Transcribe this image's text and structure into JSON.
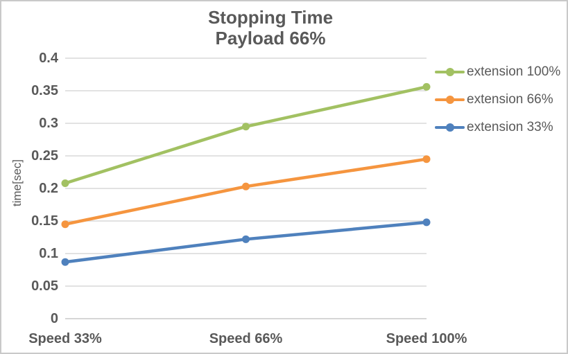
{
  "chart_data": {
    "type": "line",
    "title": "Stopping Time",
    "subtitle": "Payload 66%",
    "categories": [
      "Speed 33%",
      "Speed 66%",
      "Speed 100%"
    ],
    "series": [
      {
        "name": "extension 100%",
        "color": "#A2C162",
        "values": [
          0.208,
          0.295,
          0.356
        ]
      },
      {
        "name": "extension 66%",
        "color": "#F5953F",
        "values": [
          0.145,
          0.203,
          0.245
        ]
      },
      {
        "name": "extension 33%",
        "color": "#4F81BD",
        "values": [
          0.087,
          0.122,
          0.148
        ]
      }
    ],
    "xlabel": "",
    "ylabel": "time[sec]",
    "ylim": [
      0,
      0.4
    ],
    "ytick_step": 0.05,
    "ytick_labels": [
      "0",
      "0.05",
      "0.1",
      "0.15",
      "0.2",
      "0.25",
      "0.3",
      "0.35",
      "0.4"
    ],
    "grid": "horizontal",
    "legend_position": "right",
    "colors": {
      "grid": "#D9D9D9",
      "axis": "#C9C9C9",
      "text": "#595959",
      "border": "#C8C8C8",
      "background": "#FFFFFF"
    }
  }
}
